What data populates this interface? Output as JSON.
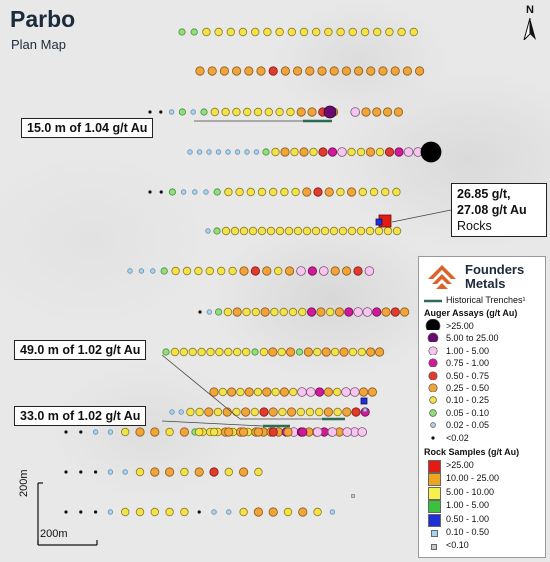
{
  "map": {
    "title": "Parbo",
    "subtitle": "Plan Map",
    "north_label": "N",
    "scale_x_label": "200m",
    "scale_y_label": "200m"
  },
  "callouts": {
    "c1": "15.0 m of 1.04 g/t Au",
    "c2": "49.0 m of 1.02 g/t Au",
    "c3": "33.0 m of 1.02 g/t Au",
    "rock_line1": "26.85 g/t,",
    "rock_line2": "27.08 g/t Au",
    "rock_line3": "Rocks"
  },
  "legend": {
    "logo_line1": "Founders",
    "logo_line2": "Metals",
    "trenches": "Historical Trenches¹",
    "auger_title": "Auger Assays (g/t Au)",
    "auger": [
      {
        "label": ">25.00",
        "color": "#000000",
        "size": "xl"
      },
      {
        "label": "5.00 to 25.00",
        "color": "#6a0a6e",
        "size": "l"
      },
      {
        "label": "1.00 - 5.00",
        "color": "#f7c6ef",
        "size": "m"
      },
      {
        "label": "0.75 - 1.00",
        "color": "#d01a9a",
        "size": "m"
      },
      {
        "label": "0.50 - 0.75",
        "color": "#e23b2e",
        "size": "m"
      },
      {
        "label": "0.25 - 0.50",
        "color": "#f0a43a",
        "size": "m"
      },
      {
        "label": "0.10 - 0.25",
        "color": "#f3e24a",
        "size": "s"
      },
      {
        "label": "0.05 - 0.10",
        "color": "#8fe07a",
        "size": "s"
      },
      {
        "label": "0.02 - 0.05",
        "color": "#a9d3ee",
        "size": "xs"
      },
      {
        "label": "<0.02",
        "color": "#111111",
        "size": "dot"
      }
    ],
    "rock_title": "Rock Samples (g/t Au)",
    "rock": [
      {
        "label": ">25.00",
        "color": "#e41b13"
      },
      {
        "label": "10.00 - 25.00",
        "color": "#f0a521"
      },
      {
        "label": "5.00 - 10.00",
        "color": "#f6f04a"
      },
      {
        "label": "1.00 - 5.00",
        "color": "#3bc13b"
      },
      {
        "label": "0.50 - 1.00",
        "color": "#1f2fd6"
      },
      {
        "label": "0.10 - 0.50",
        "color": "#a9d3ee"
      },
      {
        "label": "<0.10",
        "color": "#c9c9c9"
      }
    ]
  },
  "sample_rows": [
    {
      "grades": "ggyyyyyyyyyyyyyyyyyy"
    },
    {
      "grades": "ooooooroooooooooooo"
    },
    {
      "grades": "kkbgbgyyyyyyyyooroVpoooo"
    },
    {
      "grades": "bbbbbbbbgyoyoyrmpyyoyrmppX"
    },
    {
      "grades": "kkgbbbgyyyyyyyoroyoyyyy"
    },
    {
      "grades": "bgyyyyyyyyyyyyyyyyyyyy"
    },
    {
      "grades": "bbbgyyyyyyoroyopmpoorp"
    },
    {
      "grades": "kbgyoyyoyyyymoyomppmoro"
    },
    {
      "grades": "gyyyyyyyyygyoyogoyoyoyyoo"
    },
    {
      "grades": "oyoyoyoyoyppmoyppoo"
    },
    {
      "grades": "gyyyoyoyoooompmoomoompp"
    },
    {
      "grades": "bbyyoyoyoyroyoyyyoyorm"
    },
    {
      "grades": "kkbbyooyoyyoooromppp"
    },
    {
      "grades": "kkkbbyooyoryoy"
    },
    {
      "grades": "kkkbyyyyykbbyooyoyb"
    }
  ]
}
